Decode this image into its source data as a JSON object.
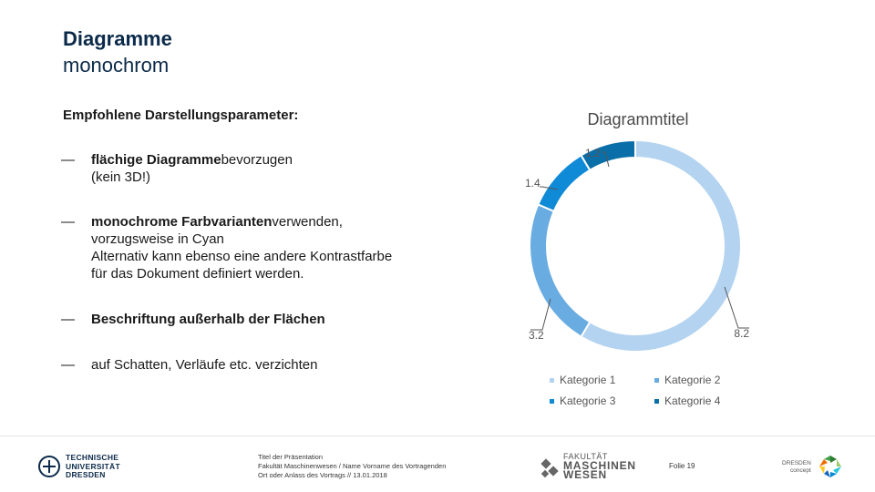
{
  "header": {
    "title": "Diagramme",
    "subtitle": "monochrom"
  },
  "params": {
    "heading": "Empfohlene Darstellungsparameter:",
    "bullets": [
      {
        "dash": "—",
        "bold": "flächige Diagramme",
        "rest": "bevorzugen",
        "line2": "(kein 3D!)"
      },
      {
        "dash": "—",
        "bold": "monochrome Farbvarianten",
        "rest": "verwenden,",
        "line2": "vorzugsweise in Cyan",
        "line3": "Alternativ kann ebenso eine andere Kontrastfarbe",
        "line4": "für das Dokument definiert werden."
      },
      {
        "dash": "—",
        "bold": "Beschriftung außerhalb der Flächen",
        "rest": ""
      },
      {
        "dash": "—",
        "bold": "",
        "rest": "auf Schatten, Verläufe etc. verzichten"
      }
    ]
  },
  "chart_data": {
    "type": "pie",
    "variant": "donut",
    "title": "Diagrammtitel",
    "categories": [
      "Kategorie 1",
      "Kategorie 2",
      "Kategorie 3",
      "Kategorie 4"
    ],
    "values": [
      8.2,
      3.2,
      1.4,
      1.2
    ],
    "value_labels": [
      "8.2",
      "3.2",
      "1.4",
      "1.2"
    ],
    "colors": [
      "#b3d3f0",
      "#69ace1",
      "#0f8ad6",
      "#0a6ea8"
    ],
    "legend": "bottom"
  },
  "footer": {
    "university_lines": [
      "TECHNISCHE",
      "UNIVERSITÄT",
      "DRESDEN"
    ],
    "meta_lines": [
      "Titel der Präsentation",
      "Fakultät Maschinenwesen / Name Vorname des Vortragenden",
      "Ort oder Anlass des Vortrags // 13.01.2018"
    ],
    "faculty_small": "FAKULTÄT",
    "faculty_big1": "MASCHINEN",
    "faculty_big2": "WESEN",
    "slide": "Folie 19",
    "dc_line1": "DRESDEN",
    "dc_line2": "concept"
  },
  "icons": {
    "tud_logo": "tud-logo-icon",
    "faculty_logo": "faculty-logo-icon",
    "dresden_concept_logo": "dresden-concept-logo-icon"
  }
}
